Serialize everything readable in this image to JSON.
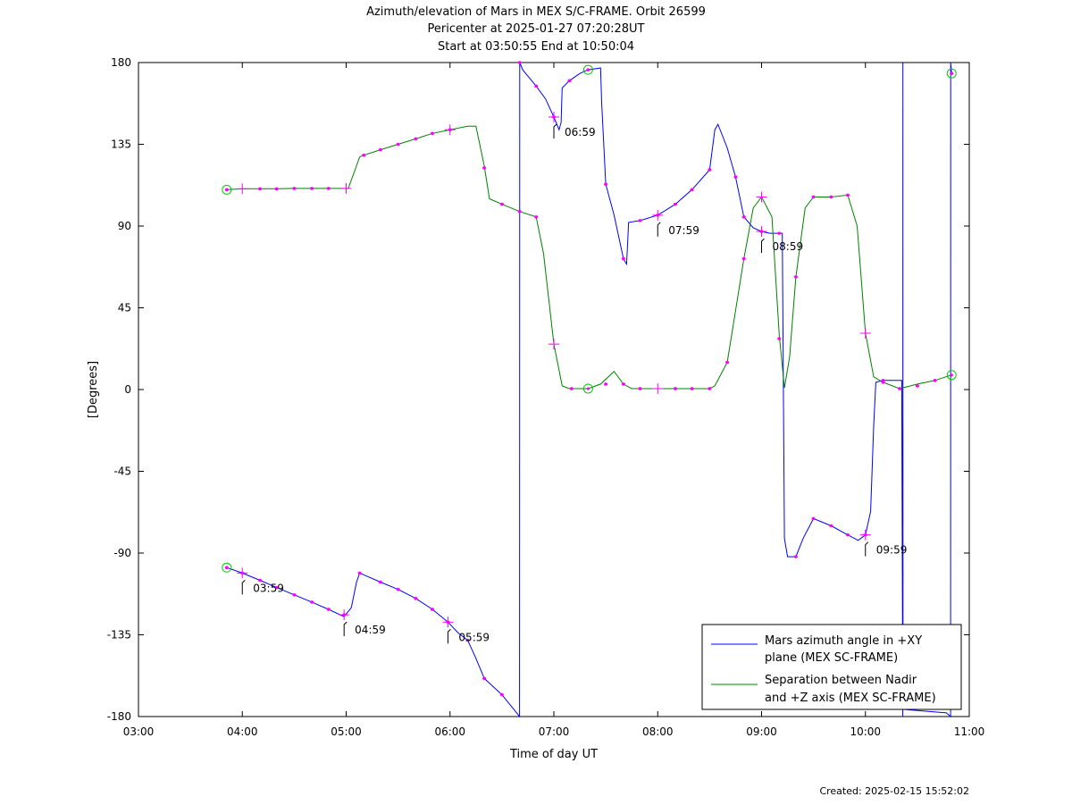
{
  "chart_data": {
    "type": "line",
    "title": "Azimuth/elevation of Mars in MEX S/C-FRAME.  Orbit 26599",
    "subtitle_lines": [
      "Pericenter at 2025-01-27 07:20:28UT",
      "Start at 03:50:55 End at 10:50:04"
    ],
    "xlabel": "Time of day UT",
    "ylabel": "[Degrees]",
    "xlim": [
      3.0,
      11.0
    ],
    "ylim": [
      -180,
      180
    ],
    "x_ticks": [
      "03:00",
      "04:00",
      "05:00",
      "06:00",
      "07:00",
      "08:00",
      "09:00",
      "10:00",
      "11:00"
    ],
    "y_ticks": [
      "180",
      "135",
      "90",
      "45",
      "0",
      "-45",
      "-90",
      "-135",
      "-180"
    ],
    "y_tick_values": [
      180,
      135,
      90,
      45,
      0,
      -45,
      -90,
      -135,
      -180
    ],
    "legend_position": "bottom-right",
    "series": [
      {
        "name_lines": [
          "Mars azimuth angle in +XY",
          "plane (MEX SC-FRAME)"
        ],
        "color": "#0000ff",
        "points": [
          [
            3.85,
            -98
          ],
          [
            4.0,
            -101
          ],
          [
            4.17,
            -105
          ],
          [
            4.33,
            -109
          ],
          [
            4.5,
            -113
          ],
          [
            4.67,
            -117
          ],
          [
            4.83,
            -121
          ],
          [
            4.98,
            -125
          ],
          [
            5.05,
            -120
          ],
          [
            5.1,
            -106
          ],
          [
            5.13,
            -101
          ],
          [
            5.17,
            -102
          ],
          [
            5.33,
            -106
          ],
          [
            5.5,
            -110
          ],
          [
            5.67,
            -115
          ],
          [
            5.83,
            -121
          ],
          [
            5.98,
            -128
          ],
          [
            6.08,
            -134
          ],
          [
            6.17,
            -138
          ],
          [
            6.25,
            -148
          ],
          [
            6.33,
            -159
          ],
          [
            6.5,
            -168
          ],
          [
            6.67,
            -180
          ],
          [
            6.671,
            180
          ],
          [
            6.7,
            176
          ],
          [
            6.83,
            167
          ],
          [
            6.92,
            160
          ],
          [
            7.0,
            150
          ],
          [
            7.05,
            143
          ],
          [
            7.07,
            147
          ],
          [
            7.08,
            166
          ],
          [
            7.15,
            170
          ],
          [
            7.25,
            174
          ],
          [
            7.33,
            176
          ],
          [
            7.45,
            177
          ],
          [
            7.46,
            158
          ],
          [
            7.5,
            113
          ],
          [
            7.58,
            96
          ],
          [
            7.67,
            72
          ],
          [
            7.7,
            69
          ],
          [
            7.72,
            92
          ],
          [
            7.83,
            93
          ],
          [
            8.0,
            96
          ],
          [
            8.17,
            102
          ],
          [
            8.33,
            110
          ],
          [
            8.5,
            121
          ],
          [
            8.55,
            143
          ],
          [
            8.58,
            146
          ],
          [
            8.67,
            133
          ],
          [
            8.75,
            117
          ],
          [
            8.83,
            95
          ],
          [
            8.92,
            89
          ],
          [
            9.0,
            87
          ],
          [
            9.08,
            86
          ],
          [
            9.2,
            86
          ],
          [
            9.22,
            -82
          ],
          [
            9.25,
            -92
          ],
          [
            9.33,
            -92
          ],
          [
            9.4,
            -82
          ],
          [
            9.5,
            -71
          ],
          [
            9.67,
            -75
          ],
          [
            9.83,
            -80
          ],
          [
            9.93,
            -83
          ],
          [
            10.0,
            -80
          ],
          [
            10.05,
            -67
          ],
          [
            10.08,
            -20
          ],
          [
            10.1,
            4
          ],
          [
            10.17,
            5
          ],
          [
            10.35,
            5
          ],
          [
            10.36,
            -180
          ],
          [
            10.361,
            180
          ],
          [
            10.362,
            -176
          ],
          [
            10.78,
            -178
          ],
          [
            10.82,
            -180
          ],
          [
            10.821,
            180
          ],
          [
            10.83,
            174
          ]
        ],
        "dots": [
          [
            3.85,
            -98
          ],
          [
            4.0,
            -101
          ],
          [
            4.17,
            -105
          ],
          [
            4.33,
            -109
          ],
          [
            4.5,
            -113
          ],
          [
            4.67,
            -117
          ],
          [
            4.83,
            -121
          ],
          [
            4.98,
            -124
          ],
          [
            5.13,
            -101
          ],
          [
            5.33,
            -106
          ],
          [
            5.5,
            -110
          ],
          [
            5.67,
            -115
          ],
          [
            5.83,
            -121
          ],
          [
            5.98,
            -128
          ],
          [
            6.17,
            -138
          ],
          [
            6.33,
            -159
          ],
          [
            6.5,
            -168
          ],
          [
            6.83,
            167
          ],
          [
            6.67,
            180
          ],
          [
            7.0,
            150
          ],
          [
            7.15,
            170
          ],
          [
            7.33,
            176
          ],
          [
            7.5,
            113
          ],
          [
            7.67,
            72
          ],
          [
            7.83,
            93
          ],
          [
            8.0,
            96
          ],
          [
            8.17,
            102
          ],
          [
            8.33,
            110
          ],
          [
            8.5,
            121
          ],
          [
            8.75,
            117
          ],
          [
            8.83,
            95
          ],
          [
            9.0,
            87
          ],
          [
            9.17,
            86
          ],
          [
            9.33,
            -92
          ],
          [
            9.5,
            -71
          ],
          [
            9.67,
            -75
          ],
          [
            9.83,
            -80
          ],
          [
            10.0,
            -80
          ],
          [
            10.17,
            5
          ],
          [
            10.83,
            174
          ]
        ],
        "circles": [
          [
            3.85,
            -98
          ],
          [
            7.33,
            176
          ],
          [
            10.83,
            174
          ]
        ],
        "crosses": [
          [
            4.0,
            -101
          ],
          [
            4.98,
            -124
          ],
          [
            5.98,
            -128
          ],
          [
            7.0,
            150
          ],
          [
            8.0,
            96
          ],
          [
            9.0,
            87
          ],
          [
            10.0,
            -80
          ]
        ]
      },
      {
        "name_lines": [
          "Separation between Nadir",
          "and +Z axis (MEX SC-FRAME)"
        ],
        "color": "#008000",
        "points": [
          [
            3.85,
            110
          ],
          [
            4.0,
            110.5
          ],
          [
            4.17,
            110.5
          ],
          [
            4.33,
            110.5
          ],
          [
            4.5,
            110.7
          ],
          [
            4.67,
            110.7
          ],
          [
            4.83,
            110.7
          ],
          [
            5.02,
            110.7
          ],
          [
            5.08,
            120
          ],
          [
            5.13,
            128
          ],
          [
            5.17,
            129
          ],
          [
            5.33,
            132
          ],
          [
            5.5,
            135
          ],
          [
            5.67,
            138
          ],
          [
            5.83,
            141
          ],
          [
            6.0,
            143
          ],
          [
            6.17,
            145
          ],
          [
            6.25,
            145
          ],
          [
            6.33,
            123
          ],
          [
            6.38,
            105
          ],
          [
            6.5,
            102
          ],
          [
            6.67,
            98
          ],
          [
            6.83,
            95
          ],
          [
            6.9,
            75
          ],
          [
            7.0,
            25
          ],
          [
            7.08,
            2
          ],
          [
            7.15,
            0.5
          ],
          [
            7.33,
            0.5
          ],
          [
            7.45,
            3
          ],
          [
            7.58,
            10
          ],
          [
            7.67,
            3
          ],
          [
            7.75,
            0.5
          ],
          [
            8.0,
            0.5
          ],
          [
            8.5,
            0.5
          ],
          [
            8.55,
            2
          ],
          [
            8.67,
            15
          ],
          [
            8.83,
            72
          ],
          [
            8.92,
            100
          ],
          [
            9.0,
            106
          ],
          [
            9.1,
            95
          ],
          [
            9.17,
            30
          ],
          [
            9.22,
            1
          ],
          [
            9.27,
            18
          ],
          [
            9.33,
            62
          ],
          [
            9.42,
            100
          ],
          [
            9.5,
            106
          ],
          [
            9.67,
            106
          ],
          [
            9.83,
            107
          ],
          [
            9.92,
            90
          ],
          [
            10.0,
            31
          ],
          [
            10.08,
            7
          ],
          [
            10.17,
            4
          ],
          [
            10.33,
            0.5
          ],
          [
            10.5,
            3
          ],
          [
            10.67,
            5
          ],
          [
            10.83,
            8
          ]
        ],
        "dots": [
          [
            3.85,
            110
          ],
          [
            4.17,
            110.5
          ],
          [
            4.33,
            110.5
          ],
          [
            4.5,
            110.7
          ],
          [
            4.67,
            110.7
          ],
          [
            4.83,
            110.7
          ],
          [
            5.17,
            129
          ],
          [
            5.33,
            132
          ],
          [
            5.5,
            135
          ],
          [
            5.67,
            138
          ],
          [
            5.83,
            141
          ],
          [
            6.0,
            143
          ],
          [
            6.33,
            122
          ],
          [
            6.5,
            102
          ],
          [
            6.67,
            98
          ],
          [
            6.83,
            95
          ],
          [
            7.17,
            0.5
          ],
          [
            7.5,
            3
          ],
          [
            7.67,
            3
          ],
          [
            7.83,
            0.5
          ],
          [
            8.17,
            0.5
          ],
          [
            8.33,
            0.5
          ],
          [
            8.5,
            0.5
          ],
          [
            8.67,
            15
          ],
          [
            8.83,
            72
          ],
          [
            9.17,
            28
          ],
          [
            9.33,
            62
          ],
          [
            9.5,
            106
          ],
          [
            9.67,
            106
          ],
          [
            9.83,
            107
          ],
          [
            10.17,
            4
          ],
          [
            10.33,
            0.5
          ],
          [
            10.5,
            2
          ],
          [
            10.67,
            5
          ]
        ],
        "circles": [
          [
            3.85,
            110
          ],
          [
            7.33,
            0.5
          ],
          [
            10.83,
            8
          ]
        ],
        "crosses": [
          [
            4.0,
            110.5
          ],
          [
            5.0,
            110.7
          ],
          [
            6.0,
            143
          ],
          [
            7.0,
            25
          ],
          [
            8.0,
            0.5
          ],
          [
            9.0,
            106
          ],
          [
            10.0,
            31
          ]
        ]
      }
    ],
    "annotations": [
      {
        "text": "03:59",
        "x": 4.0,
        "y": -101
      },
      {
        "text": "04:59",
        "x": 4.98,
        "y": -124
      },
      {
        "text": "05:59",
        "x": 5.98,
        "y": -128
      },
      {
        "text": "06:59",
        "x": 7.0,
        "y": 150
      },
      {
        "text": "07:59",
        "x": 8.0,
        "y": 96
      },
      {
        "text": "08:59",
        "x": 9.0,
        "y": 87
      },
      {
        "text": "09:59",
        "x": 10.0,
        "y": -80
      }
    ],
    "marker_color": "#ff00ff",
    "circle_color": "#00cc00"
  },
  "footer": {
    "created": "Created: 2025-02-15 15:52:02"
  }
}
